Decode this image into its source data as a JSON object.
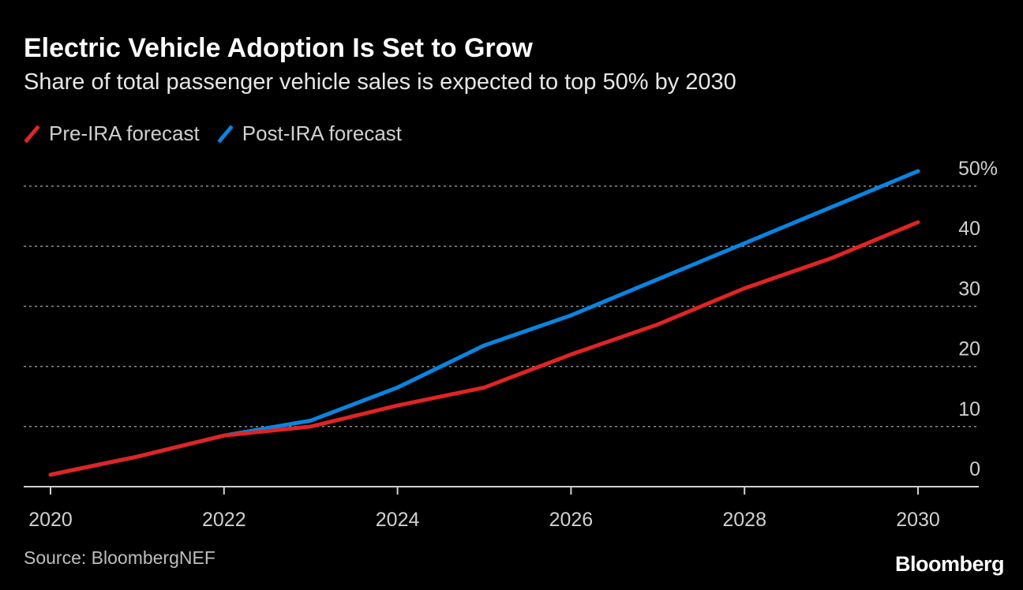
{
  "header": {
    "title": "Electric Vehicle Adoption Is Set to Grow",
    "subtitle": "Share of total passenger vehicle sales is expected to top 50% by 2030"
  },
  "legend": [
    {
      "label": "Pre-IRA forecast",
      "color": "#e02424"
    },
    {
      "label": "Post-IRA forecast",
      "color": "#0a84e0"
    }
  ],
  "footer": {
    "source": "Source: BloombergNEF",
    "brand": "Bloomberg"
  },
  "chart_data": {
    "type": "line",
    "x": [
      2020,
      2021,
      2022,
      2023,
      2024,
      2025,
      2026,
      2027,
      2028,
      2029,
      2030
    ],
    "series": [
      {
        "name": "Pre-IRA forecast",
        "color": "#e02424",
        "values": [
          2,
          5,
          8.5,
          10,
          13.5,
          16.5,
          22,
          27,
          33,
          38,
          44
        ]
      },
      {
        "name": "Post-IRA forecast",
        "color": "#0a84e0",
        "values": [
          2,
          5,
          8.5,
          11,
          16.5,
          23.5,
          28.5,
          34.5,
          40.5,
          46.5,
          52.5
        ]
      }
    ],
    "x_ticks": [
      "2020",
      "2022",
      "2024",
      "2026",
      "2028",
      "2030"
    ],
    "y_ticks": [
      "0",
      "10",
      "20",
      "30",
      "40",
      "50%"
    ],
    "ylim": [
      0,
      50
    ],
    "xlim": [
      2020,
      2030
    ],
    "grid": true,
    "legend_position": "top-left",
    "axis_position": "right"
  }
}
